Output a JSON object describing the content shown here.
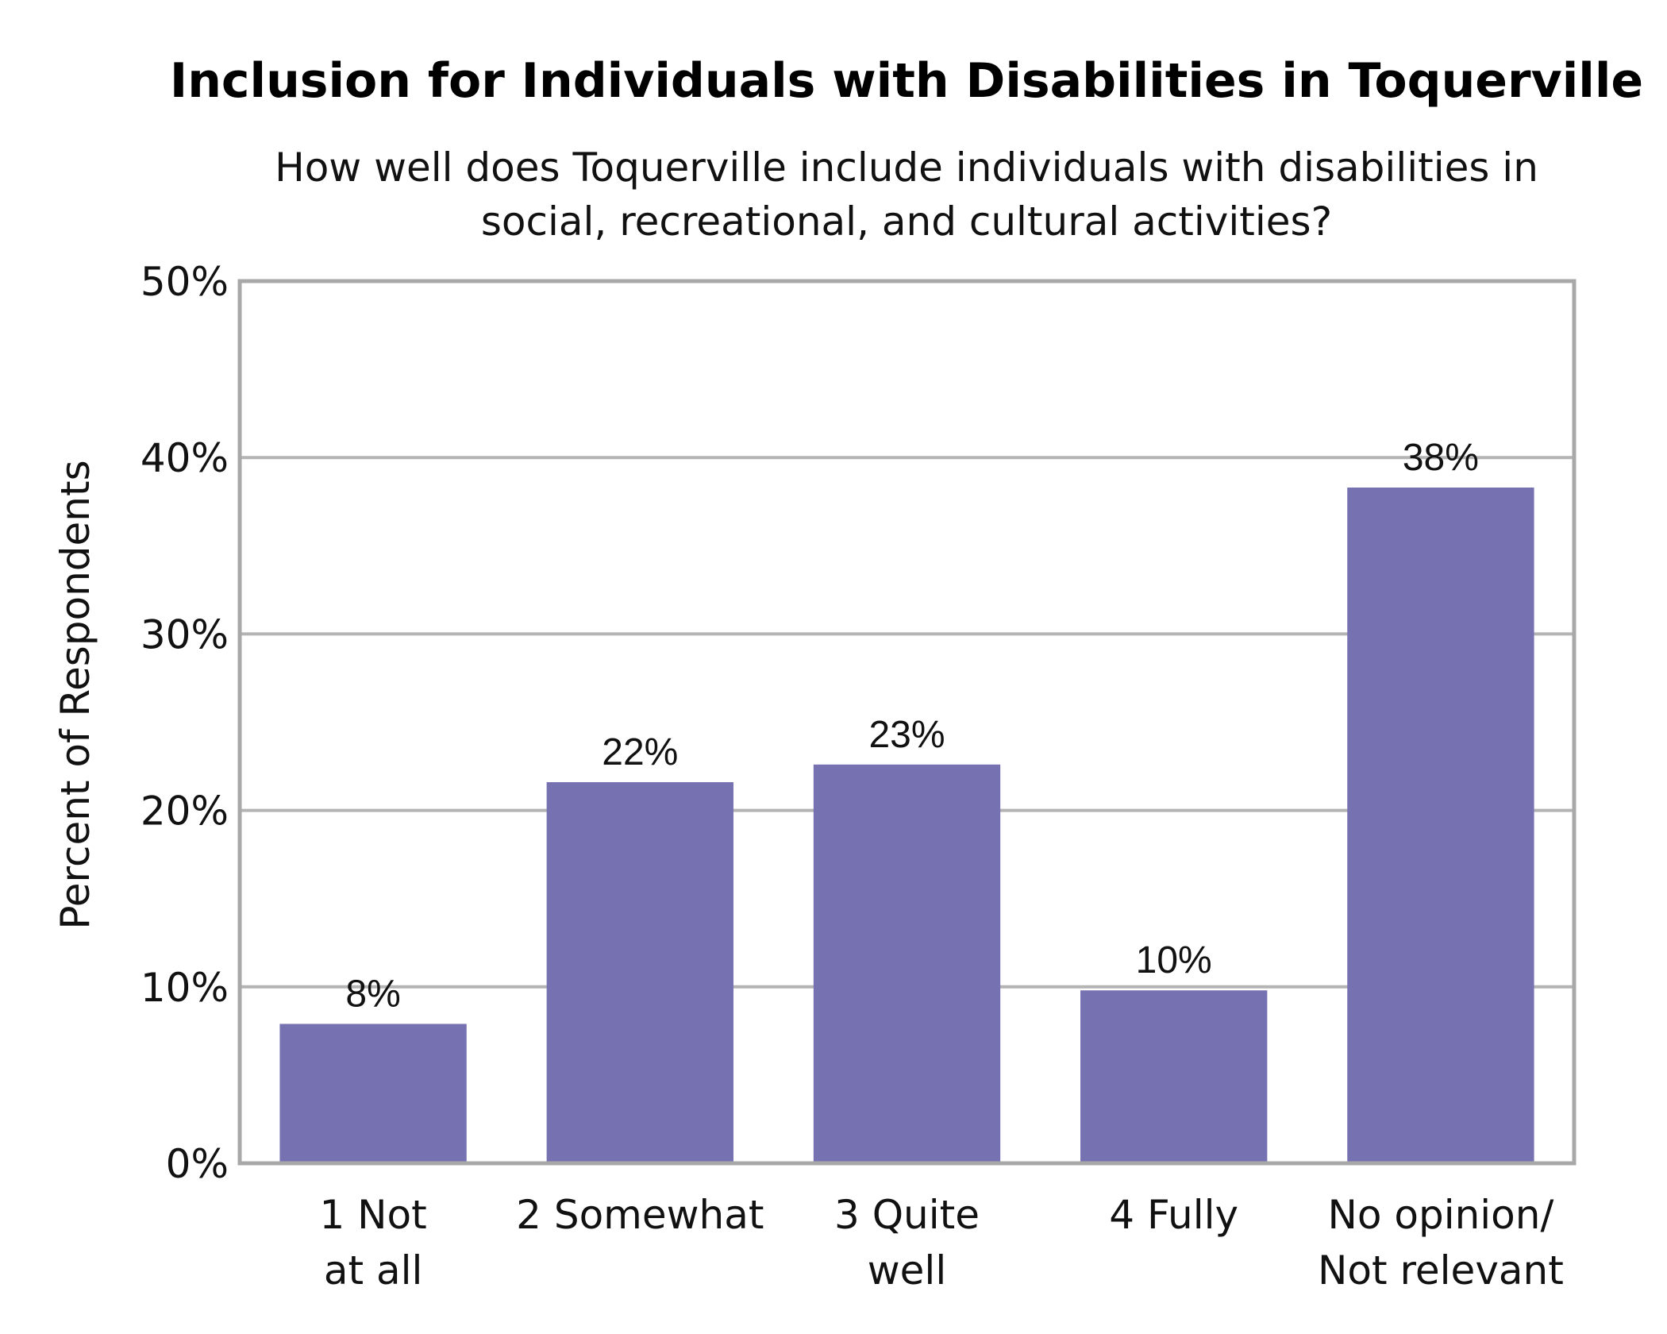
{
  "chart_data": {
    "type": "bar",
    "title": "Inclusion for Individuals with Disabilities in Toquerville",
    "subtitle_lines": [
      "How well does Toquerville include individuals with disabilities in",
      "social, recreational, and cultural activities?"
    ],
    "xlabel": "",
    "ylabel": "Percent of Respondents",
    "ylim": [
      0,
      50
    ],
    "yticks": [
      {
        "value": 0,
        "label": "0%"
      },
      {
        "value": 10,
        "label": "10%"
      },
      {
        "value": 20,
        "label": "20%"
      },
      {
        "value": 30,
        "label": "30%"
      },
      {
        "value": 40,
        "label": "40%"
      },
      {
        "value": 50,
        "label": "50%"
      }
    ],
    "categories": [
      {
        "lines": [
          "1 Not",
          "at all"
        ]
      },
      {
        "lines": [
          "2 Somewhat"
        ]
      },
      {
        "lines": [
          "3 Quite",
          "well"
        ]
      },
      {
        "lines": [
          "4 Fully"
        ]
      },
      {
        "lines": [
          "No opinion/",
          "Not relevant"
        ]
      }
    ],
    "values": [
      7.9,
      21.6,
      22.6,
      9.8,
      38.3
    ],
    "data_labels": [
      "8%",
      "22%",
      "23%",
      "10%",
      "38%"
    ],
    "grid": true,
    "legend": "none",
    "colors": {
      "bar": "#7672B2",
      "grid": "#b4b4b4",
      "frame": "#a8a8a8"
    }
  }
}
